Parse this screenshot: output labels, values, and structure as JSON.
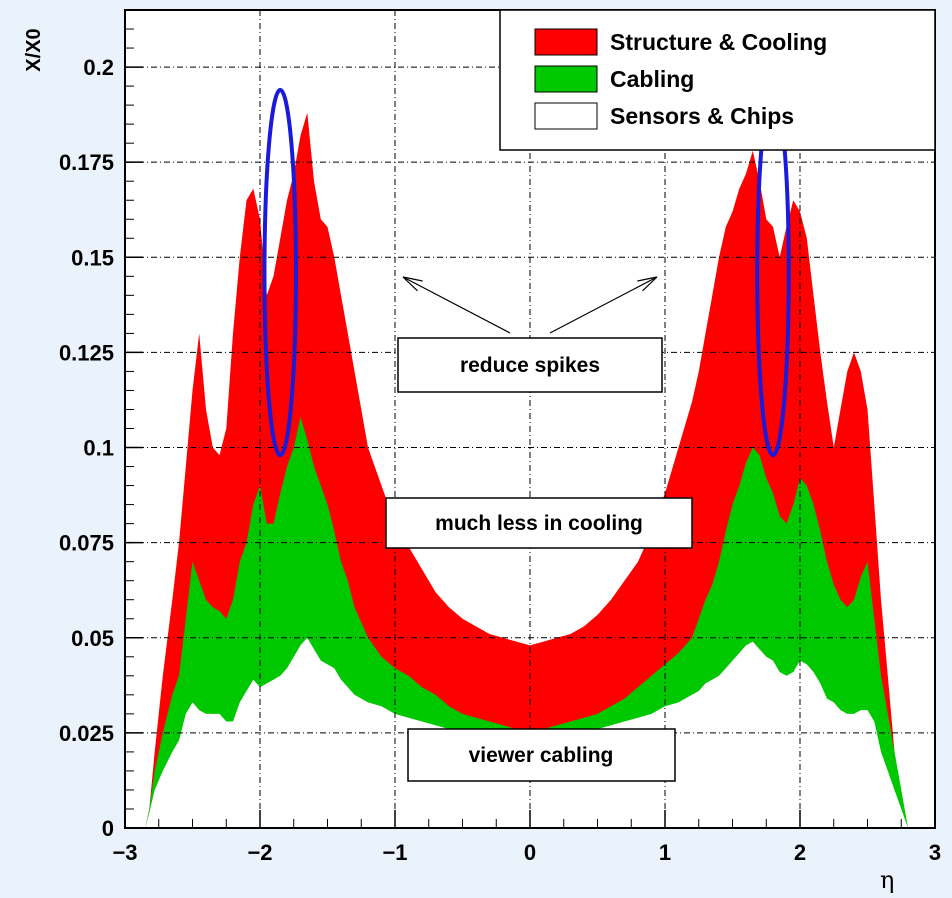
{
  "chart_data": {
    "type": "area",
    "title": "",
    "xlabel": "η",
    "ylabel": "X/X0",
    "xlim": [
      -3,
      3
    ],
    "ylim": [
      0,
      0.215
    ],
    "grid": true,
    "legend_placement": "top-right",
    "x_ticks": [
      "−3",
      "−2",
      "−1",
      "0",
      "1",
      "2",
      "3"
    ],
    "y_ticks": [
      "0",
      "0.025",
      "0.05",
      "0.075",
      "0.1",
      "0.125",
      "0.15",
      "0.175",
      "0.2"
    ],
    "x_tick_values": [
      -3,
      -2,
      -1,
      0,
      1,
      2,
      3
    ],
    "y_tick_values": [
      0,
      0.025,
      0.05,
      0.075,
      0.1,
      0.125,
      0.15,
      0.175,
      0.2
    ],
    "x": [
      -2.85,
      -2.82,
      -2.78,
      -2.72,
      -2.65,
      -2.6,
      -2.55,
      -2.5,
      -2.45,
      -2.4,
      -2.35,
      -2.3,
      -2.25,
      -2.2,
      -2.15,
      -2.1,
      -2.05,
      -2.0,
      -1.95,
      -1.9,
      -1.85,
      -1.8,
      -1.75,
      -1.7,
      -1.65,
      -1.6,
      -1.55,
      -1.5,
      -1.45,
      -1.4,
      -1.35,
      -1.3,
      -1.25,
      -1.2,
      -1.1,
      -1.0,
      -0.9,
      -0.8,
      -0.7,
      -0.6,
      -0.5,
      -0.4,
      -0.3,
      -0.2,
      -0.1,
      0.0,
      0.1,
      0.2,
      0.3,
      0.4,
      0.5,
      0.6,
      0.7,
      0.8,
      0.9,
      1.0,
      1.1,
      1.2,
      1.25,
      1.3,
      1.35,
      1.4,
      1.45,
      1.5,
      1.55,
      1.6,
      1.65,
      1.7,
      1.75,
      1.8,
      1.85,
      1.9,
      1.95,
      2.0,
      2.05,
      2.1,
      2.15,
      2.2,
      2.25,
      2.3,
      2.35,
      2.4,
      2.45,
      2.5,
      2.55,
      2.6,
      2.65,
      2.7,
      2.75,
      2.8
    ],
    "series": [
      {
        "name": "Sensors & Chips",
        "color": "#ffffff",
        "values": [
          0.0,
          0.004,
          0.01,
          0.015,
          0.02,
          0.023,
          0.03,
          0.033,
          0.031,
          0.03,
          0.03,
          0.03,
          0.028,
          0.028,
          0.033,
          0.036,
          0.039,
          0.037,
          0.038,
          0.039,
          0.04,
          0.042,
          0.045,
          0.048,
          0.05,
          0.047,
          0.044,
          0.043,
          0.042,
          0.039,
          0.037,
          0.035,
          0.034,
          0.033,
          0.032,
          0.03,
          0.029,
          0.028,
          0.027,
          0.026,
          0.025,
          0.025,
          0.024,
          0.024,
          0.024,
          0.024,
          0.024,
          0.024,
          0.025,
          0.025,
          0.026,
          0.027,
          0.028,
          0.029,
          0.03,
          0.032,
          0.033,
          0.035,
          0.036,
          0.038,
          0.039,
          0.04,
          0.042,
          0.044,
          0.046,
          0.048,
          0.049,
          0.047,
          0.045,
          0.044,
          0.041,
          0.04,
          0.041,
          0.044,
          0.043,
          0.041,
          0.038,
          0.034,
          0.033,
          0.031,
          0.03,
          0.03,
          0.031,
          0.031,
          0.028,
          0.02,
          0.015,
          0.01,
          0.005,
          0.0
        ]
      },
      {
        "name": "Cabling",
        "color": "#00c800",
        "values": [
          0.0,
          0.005,
          0.015,
          0.025,
          0.035,
          0.04,
          0.055,
          0.07,
          0.065,
          0.06,
          0.058,
          0.057,
          0.055,
          0.06,
          0.07,
          0.075,
          0.085,
          0.09,
          0.08,
          0.08,
          0.088,
          0.095,
          0.1,
          0.108,
          0.102,
          0.095,
          0.09,
          0.085,
          0.078,
          0.07,
          0.065,
          0.058,
          0.054,
          0.05,
          0.045,
          0.042,
          0.04,
          0.037,
          0.035,
          0.032,
          0.03,
          0.029,
          0.028,
          0.027,
          0.026,
          0.026,
          0.026,
          0.027,
          0.028,
          0.029,
          0.03,
          0.032,
          0.034,
          0.037,
          0.04,
          0.043,
          0.046,
          0.05,
          0.055,
          0.06,
          0.064,
          0.07,
          0.078,
          0.085,
          0.09,
          0.096,
          0.1,
          0.098,
          0.092,
          0.088,
          0.082,
          0.08,
          0.085,
          0.092,
          0.09,
          0.085,
          0.078,
          0.07,
          0.064,
          0.06,
          0.058,
          0.06,
          0.066,
          0.07,
          0.055,
          0.04,
          0.03,
          0.02,
          0.01,
          0.0
        ]
      },
      {
        "name": "Structure & Cooling",
        "color": "#ff0000",
        "values": [
          0.0,
          0.005,
          0.02,
          0.04,
          0.06,
          0.075,
          0.095,
          0.115,
          0.13,
          0.11,
          0.1,
          0.098,
          0.105,
          0.13,
          0.15,
          0.165,
          0.168,
          0.16,
          0.14,
          0.145,
          0.155,
          0.165,
          0.172,
          0.182,
          0.188,
          0.17,
          0.16,
          0.158,
          0.15,
          0.14,
          0.13,
          0.12,
          0.11,
          0.1,
          0.09,
          0.08,
          0.074,
          0.068,
          0.062,
          0.058,
          0.055,
          0.053,
          0.051,
          0.05,
          0.049,
          0.048,
          0.049,
          0.05,
          0.051,
          0.053,
          0.056,
          0.06,
          0.065,
          0.07,
          0.078,
          0.088,
          0.1,
          0.112,
          0.12,
          0.13,
          0.14,
          0.15,
          0.158,
          0.162,
          0.168,
          0.172,
          0.178,
          0.17,
          0.16,
          0.158,
          0.15,
          0.158,
          0.165,
          0.162,
          0.155,
          0.14,
          0.125,
          0.112,
          0.1,
          0.11,
          0.12,
          0.125,
          0.12,
          0.11,
          0.085,
          0.06,
          0.04,
          0.02,
          0.008,
          0.0
        ]
      }
    ],
    "annotations": [
      {
        "text": "reduce spikes"
      },
      {
        "text": "much less in cooling"
      },
      {
        "text": "viewer cabling"
      }
    ],
    "ellipses": [
      {
        "cx": -1.85,
        "cy": 0.146,
        "rx": 0.8,
        "ry": 0.048
      },
      {
        "cx": 1.8,
        "cy": 0.146,
        "rx": 0.8,
        "ry": 0.048
      }
    ]
  }
}
